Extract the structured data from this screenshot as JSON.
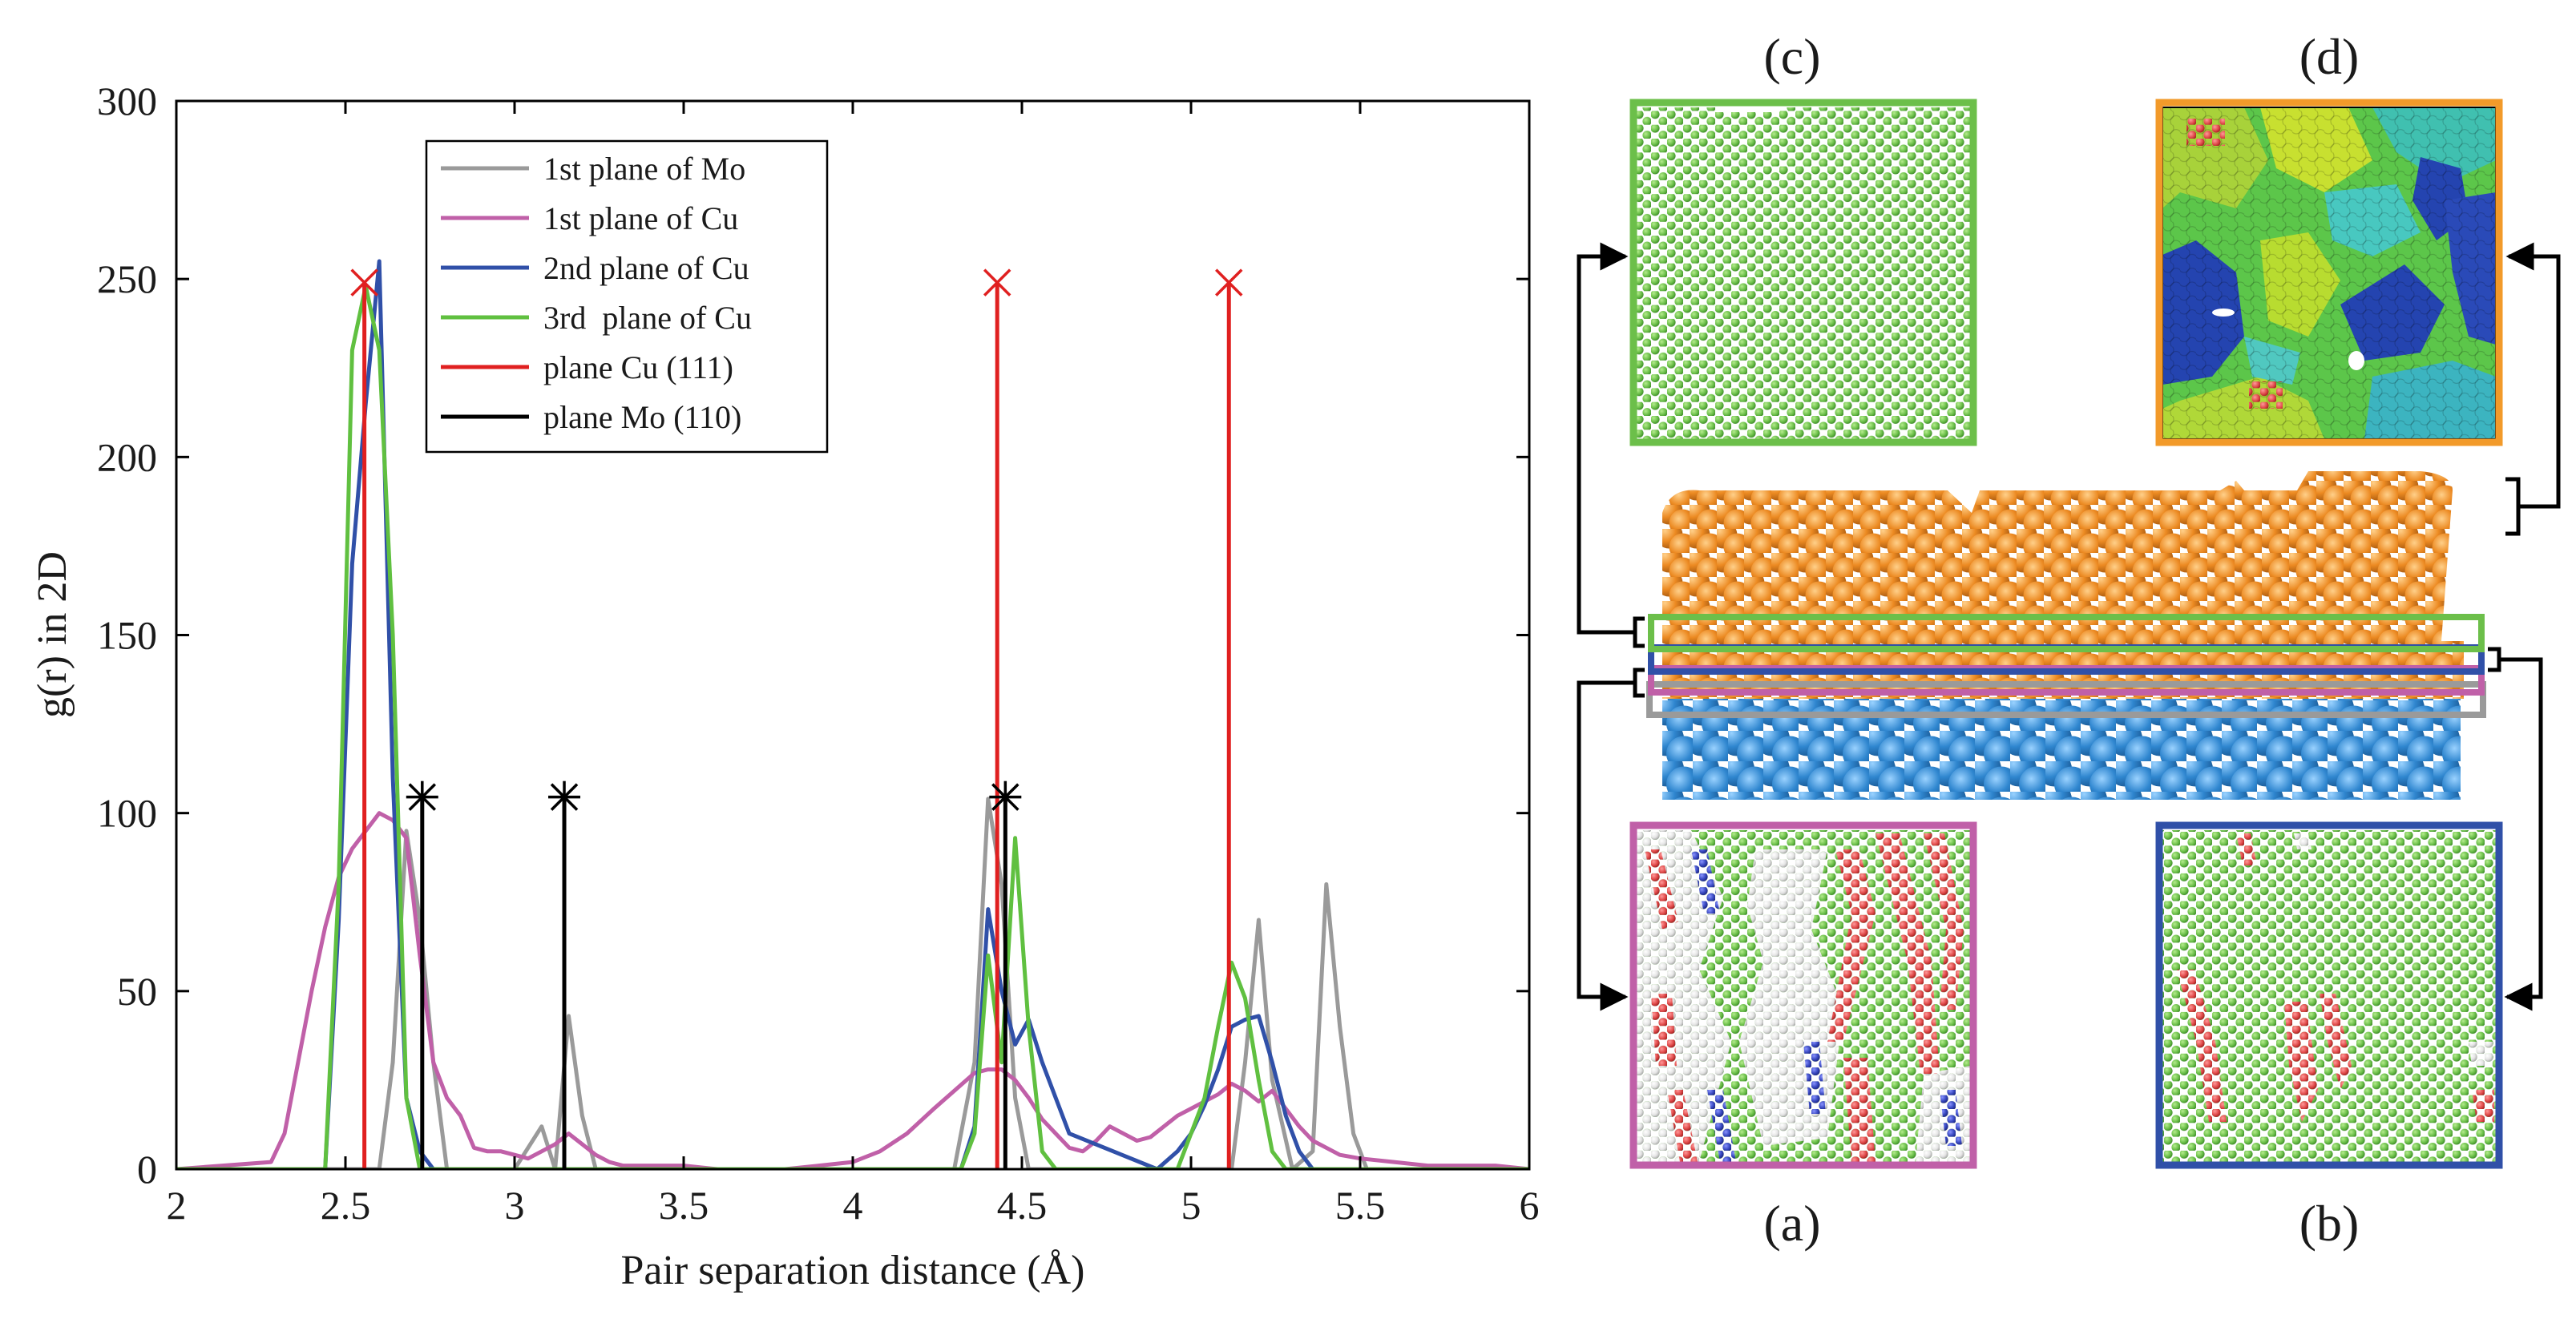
{
  "chart_data": {
    "type": "line",
    "xlabel": "Pair separation distance (Å)",
    "ylabel": "g(r) in 2D",
    "xlim": [
      2,
      6
    ],
    "ylim": [
      0,
      300
    ],
    "xticks": [
      2,
      2.5,
      3,
      3.5,
      4,
      4.5,
      5,
      5.5,
      6
    ],
    "xtick_labels": [
      "2",
      "2.5",
      "3",
      "3.5",
      "4",
      "4.5",
      "5",
      "5.5",
      "6"
    ],
    "yticks": [
      0,
      50,
      100,
      150,
      200,
      250,
      300
    ],
    "ytick_labels": [
      "0",
      "50",
      "100",
      "150",
      "200",
      "250",
      "300"
    ],
    "grid": false,
    "legend_position": "top-center",
    "series": [
      {
        "name": "1st plane of Mo",
        "color": "#9a9a9a",
        "kind": "line",
        "x": [
          2.0,
          2.6,
          2.64,
          2.68,
          2.72,
          2.76,
          2.8,
          3.0,
          3.08,
          3.12,
          3.16,
          3.2,
          3.24,
          3.28,
          4.3,
          4.36,
          4.4,
          4.44,
          4.48,
          4.52,
          4.56,
          5.12,
          5.16,
          5.2,
          5.24,
          5.3,
          5.36,
          5.4,
          5.44,
          5.48,
          5.52,
          5.6,
          6.0
        ],
        "y": [
          0,
          0,
          30,
          95,
          70,
          30,
          0,
          0,
          12,
          0,
          43,
          15,
          0,
          0,
          0,
          30,
          104,
          80,
          20,
          0,
          0,
          0,
          30,
          70,
          25,
          0,
          5,
          80,
          40,
          10,
          0,
          0,
          0
        ]
      },
      {
        "name": "1st plane of Cu",
        "color": "#c060a8",
        "kind": "line",
        "x": [
          2.0,
          2.28,
          2.32,
          2.36,
          2.4,
          2.44,
          2.48,
          2.52,
          2.56,
          2.6,
          2.64,
          2.68,
          2.72,
          2.76,
          2.8,
          2.84,
          2.88,
          2.92,
          2.96,
          3.0,
          3.04,
          3.08,
          3.12,
          3.16,
          3.2,
          3.24,
          3.28,
          3.32,
          3.4,
          3.5,
          3.6,
          3.7,
          3.8,
          3.9,
          4.0,
          4.08,
          4.16,
          4.24,
          4.3,
          4.36,
          4.4,
          4.44,
          4.48,
          4.52,
          4.56,
          4.6,
          4.64,
          4.68,
          4.72,
          4.76,
          4.8,
          4.84,
          4.88,
          4.92,
          4.96,
          5.0,
          5.04,
          5.08,
          5.12,
          5.16,
          5.2,
          5.24,
          5.28,
          5.32,
          5.36,
          5.4,
          5.44,
          5.5,
          5.6,
          5.7,
          5.8,
          5.9,
          6.0
        ],
        "y": [
          0,
          2,
          10,
          30,
          50,
          68,
          82,
          90,
          95,
          100,
          98,
          93,
          60,
          30,
          20,
          15,
          6,
          5,
          5,
          4,
          3,
          5,
          7,
          10,
          7,
          4,
          2,
          1,
          1,
          1,
          0,
          0,
          0,
          1,
          2,
          5,
          10,
          17,
          22,
          27,
          28,
          28,
          25,
          20,
          14,
          10,
          6,
          5,
          8,
          12,
          10,
          8,
          9,
          12,
          15,
          17,
          19,
          21,
          24,
          22,
          19,
          22,
          17,
          12,
          8,
          6,
          4,
          3,
          2,
          1,
          1,
          1,
          0
        ]
      },
      {
        "name": "2nd plane of Cu",
        "color": "#3050a8",
        "kind": "line",
        "x": [
          2.0,
          2.44,
          2.48,
          2.52,
          2.56,
          2.6,
          2.64,
          2.68,
          2.72,
          2.76,
          4.32,
          4.36,
          4.4,
          4.44,
          4.48,
          4.52,
          4.56,
          4.6,
          4.64,
          4.9,
          4.96,
          5.0,
          5.04,
          5.08,
          5.12,
          5.16,
          5.2,
          5.24,
          5.28,
          5.32,
          5.36,
          6.0
        ],
        "y": [
          0,
          0,
          70,
          170,
          215,
          255,
          110,
          20,
          5,
          0,
          0,
          12,
          73,
          50,
          35,
          42,
          30,
          20,
          10,
          0,
          5,
          10,
          18,
          28,
          40,
          42,
          43,
          30,
          15,
          5,
          0,
          0
        ]
      },
      {
        "name": "3rd  plane of Cu",
        "color": "#60c040",
        "kind": "line",
        "x": [
          2.0,
          2.44,
          2.48,
          2.52,
          2.56,
          2.6,
          2.64,
          2.68,
          2.72,
          4.32,
          4.36,
          4.4,
          4.44,
          4.48,
          4.52,
          4.56,
          4.6,
          4.96,
          5.0,
          5.04,
          5.08,
          5.12,
          5.16,
          5.2,
          5.24,
          5.28,
          6.0
        ],
        "y": [
          0,
          0,
          80,
          230,
          248,
          230,
          150,
          20,
          0,
          0,
          10,
          60,
          30,
          93,
          40,
          5,
          0,
          0,
          10,
          20,
          40,
          58,
          48,
          25,
          5,
          0,
          0
        ]
      },
      {
        "name": "plane Cu (111)",
        "color": "#e02020",
        "kind": "stem",
        "marker": "x",
        "x": [
          2.556,
          4.427,
          5.112
        ],
        "y": [
          249,
          249,
          249
        ]
      },
      {
        "name": "plane Mo (110)",
        "color": "#000000",
        "kind": "stem",
        "marker": "asterisk",
        "x": [
          2.727,
          3.147,
          4.451
        ],
        "y": [
          104.5,
          104.5,
          104.5
        ]
      }
    ]
  },
  "panels": {
    "c": {
      "label": "(c)",
      "frame_color": "#6cbf4a",
      "atom_color": "#70c048"
    },
    "d": {
      "label": "(d)",
      "frame_color": "#f29a2a"
    },
    "a": {
      "label": "(a)",
      "frame_color": "#c060a8"
    },
    "b": {
      "label": "(b)",
      "frame_color": "#3050a8"
    }
  },
  "slab": {
    "top_color": "#e8861e",
    "bottom_color": "#2f86cf"
  }
}
